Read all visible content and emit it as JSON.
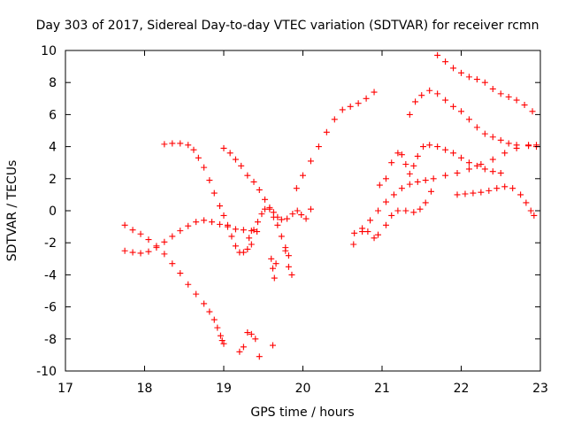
{
  "chart_data": {
    "type": "scatter",
    "title": "Day 303 of 2017, Sidereal Day-to-day VTEC variation (SDTVAR) for receiver rcmn",
    "xlabel": "GPS time / hours",
    "ylabel": "SDTVAR / TECUs",
    "xlim": [
      17,
      23
    ],
    "ylim": [
      -10,
      10
    ],
    "x_ticks": [
      "17",
      "18",
      "19",
      "20",
      "21",
      "22",
      "23"
    ],
    "y_ticks": [
      "-10",
      "-8",
      "-6",
      "-4",
      "-2",
      "0",
      "2",
      "4",
      "6",
      "8",
      "10"
    ],
    "marker": "+",
    "marker_color": "#ff0000",
    "grid": false,
    "legend": "none",
    "series": [
      {
        "points": [
          [
            17.75,
            -2.5
          ],
          [
            17.85,
            -2.6
          ],
          [
            17.95,
            -2.65
          ],
          [
            18.05,
            -2.55
          ],
          [
            18.15,
            -2.3
          ],
          [
            18.25,
            -1.95
          ],
          [
            18.35,
            -1.6
          ],
          [
            18.45,
            -1.25
          ],
          [
            18.55,
            -0.95
          ],
          [
            18.65,
            -0.7
          ],
          [
            18.75,
            -0.6
          ],
          [
            18.85,
            -0.7
          ],
          [
            18.95,
            -0.85
          ],
          [
            19.05,
            -1.0
          ],
          [
            19.15,
            -1.15
          ],
          [
            19.25,
            -1.2
          ],
          [
            19.35,
            -1.25
          ],
          [
            19.42,
            -1.3
          ]
        ]
      },
      {
        "points": [
          [
            17.75,
            -0.9
          ],
          [
            17.85,
            -1.2
          ],
          [
            17.95,
            -1.45
          ],
          [
            18.05,
            -1.8
          ],
          [
            18.15,
            -2.2
          ],
          [
            18.25,
            -2.7
          ],
          [
            18.35,
            -3.3
          ],
          [
            18.45,
            -3.9
          ],
          [
            18.55,
            -4.6
          ],
          [
            18.65,
            -5.2
          ],
          [
            18.75,
            -5.8
          ],
          [
            18.82,
            -6.3
          ],
          [
            18.88,
            -6.8
          ],
          [
            18.92,
            -7.3
          ],
          [
            18.96,
            -7.8
          ],
          [
            18.98,
            -8.1
          ],
          [
            19.0,
            -8.3
          ]
        ]
      },
      {
        "points": [
          [
            18.25,
            4.15
          ],
          [
            18.35,
            4.2
          ],
          [
            18.45,
            4.2
          ],
          [
            18.55,
            4.1
          ],
          [
            18.62,
            3.8
          ],
          [
            18.68,
            3.3
          ],
          [
            18.75,
            2.7
          ],
          [
            18.82,
            1.9
          ],
          [
            18.88,
            1.1
          ],
          [
            18.95,
            0.3
          ],
          [
            19.0,
            -0.3
          ],
          [
            19.05,
            -0.9
          ],
          [
            19.1,
            -1.6
          ],
          [
            19.15,
            -2.2
          ],
          [
            19.2,
            -2.6
          ],
          [
            19.25,
            -2.6
          ],
          [
            19.3,
            -2.4
          ],
          [
            19.35,
            -2.1
          ]
        ]
      },
      {
        "points": [
          [
            19.2,
            -8.8
          ],
          [
            19.25,
            -8.5
          ],
          [
            19.3,
            -7.6
          ],
          [
            19.35,
            -7.7
          ],
          [
            19.4,
            -8.0
          ],
          [
            19.45,
            -9.1
          ]
        ]
      },
      {
        "points": [
          [
            19.0,
            3.9
          ],
          [
            19.08,
            3.6
          ],
          [
            19.15,
            3.2
          ],
          [
            19.22,
            2.8
          ],
          [
            19.3,
            2.2
          ],
          [
            19.38,
            1.8
          ],
          [
            19.45,
            1.3
          ],
          [
            19.52,
            0.7
          ],
          [
            19.58,
            0.1
          ],
          [
            19.63,
            -0.4
          ],
          [
            19.68,
            -0.9
          ],
          [
            19.73,
            -1.6
          ],
          [
            19.78,
            -2.3
          ],
          [
            19.82,
            -2.8
          ]
        ]
      },
      {
        "points": [
          [
            19.6,
            -3.0
          ],
          [
            19.62,
            -3.6
          ],
          [
            19.64,
            -4.2
          ],
          [
            19.66,
            -3.3
          ],
          [
            19.78,
            -2.5
          ],
          [
            19.82,
            -3.5
          ],
          [
            19.86,
            -4.0
          ],
          [
            19.62,
            -8.4
          ]
        ]
      },
      {
        "points": [
          [
            19.32,
            -1.7
          ],
          [
            19.38,
            -1.2
          ],
          [
            19.43,
            -0.7
          ],
          [
            19.48,
            -0.2
          ],
          [
            19.52,
            0.1
          ],
          [
            19.58,
            0.2
          ],
          [
            19.63,
            -0.1
          ],
          [
            19.68,
            -0.4
          ],
          [
            19.73,
            -0.55
          ],
          [
            19.8,
            -0.5
          ],
          [
            19.87,
            -0.2
          ],
          [
            19.93,
            0.0
          ],
          [
            19.98,
            -0.25
          ],
          [
            20.04,
            -0.5
          ],
          [
            20.1,
            0.1
          ]
        ]
      },
      {
        "points": [
          [
            19.92,
            1.4
          ],
          [
            20.0,
            2.2
          ],
          [
            20.1,
            3.1
          ],
          [
            20.2,
            4.0
          ],
          [
            20.3,
            4.9
          ],
          [
            20.4,
            5.7
          ],
          [
            20.5,
            6.3
          ],
          [
            20.6,
            6.5
          ],
          [
            20.7,
            6.7
          ],
          [
            20.8,
            7.0
          ],
          [
            20.9,
            7.4
          ]
        ]
      },
      {
        "points": [
          [
            20.64,
            -2.1
          ],
          [
            20.75,
            -1.3
          ],
          [
            20.85,
            -0.6
          ],
          [
            20.95,
            0.0
          ],
          [
            21.05,
            0.55
          ],
          [
            21.15,
            1.0
          ],
          [
            21.25,
            1.4
          ],
          [
            21.35,
            1.65
          ],
          [
            21.45,
            1.8
          ],
          [
            21.55,
            1.9
          ],
          [
            21.65,
            2.0
          ],
          [
            21.8,
            2.2
          ],
          [
            21.95,
            2.35
          ],
          [
            22.1,
            2.6
          ],
          [
            22.25,
            2.9
          ],
          [
            22.4,
            3.2
          ],
          [
            22.55,
            3.6
          ],
          [
            22.7,
            3.9
          ],
          [
            22.85,
            4.1
          ],
          [
            22.95,
            4.1
          ]
        ]
      },
      {
        "points": [
          [
            20.65,
            -1.4
          ],
          [
            20.75,
            -1.1
          ],
          [
            20.82,
            -1.3
          ],
          [
            20.9,
            -1.7
          ],
          [
            20.95,
            -1.5
          ],
          [
            21.05,
            -0.9
          ],
          [
            21.12,
            -0.3
          ],
          [
            21.2,
            0.0
          ],
          [
            21.3,
            0.0
          ],
          [
            21.4,
            -0.1
          ],
          [
            21.48,
            0.1
          ],
          [
            21.55,
            0.5
          ],
          [
            21.62,
            1.2
          ]
        ]
      },
      {
        "points": [
          [
            20.97,
            1.6
          ],
          [
            21.05,
            2.0
          ],
          [
            21.12,
            3.0
          ],
          [
            21.2,
            3.6
          ],
          [
            21.25,
            3.5
          ],
          [
            21.3,
            2.9
          ],
          [
            21.35,
            2.3
          ],
          [
            21.4,
            2.8
          ],
          [
            21.45,
            3.4
          ],
          [
            21.52,
            4.0
          ],
          [
            21.6,
            4.1
          ],
          [
            21.7,
            4.0
          ],
          [
            21.8,
            3.8
          ],
          [
            21.9,
            3.6
          ],
          [
            22.0,
            3.3
          ],
          [
            22.1,
            3.0
          ],
          [
            22.2,
            2.8
          ],
          [
            22.3,
            2.6
          ],
          [
            22.4,
            2.45
          ],
          [
            22.5,
            2.35
          ]
        ]
      },
      {
        "points": [
          [
            21.35,
            6.0
          ],
          [
            21.42,
            6.8
          ],
          [
            21.5,
            7.2
          ],
          [
            21.6,
            7.5
          ],
          [
            21.7,
            7.3
          ],
          [
            21.8,
            6.9
          ],
          [
            21.9,
            6.5
          ],
          [
            22.0,
            6.2
          ],
          [
            22.1,
            5.7
          ],
          [
            22.2,
            5.2
          ],
          [
            22.3,
            4.8
          ],
          [
            22.4,
            4.6
          ],
          [
            22.5,
            4.4
          ],
          [
            22.6,
            4.2
          ],
          [
            22.7,
            4.1
          ],
          [
            22.85,
            4.05
          ],
          [
            22.95,
            4.0
          ]
        ]
      },
      {
        "points": [
          [
            21.7,
            9.7
          ],
          [
            21.8,
            9.3
          ],
          [
            21.9,
            8.9
          ],
          [
            22.0,
            8.6
          ],
          [
            22.1,
            8.35
          ],
          [
            22.2,
            8.2
          ],
          [
            22.3,
            8.0
          ],
          [
            22.4,
            7.6
          ],
          [
            22.5,
            7.3
          ],
          [
            22.6,
            7.1
          ],
          [
            22.7,
            6.9
          ],
          [
            22.8,
            6.6
          ],
          [
            22.9,
            6.2
          ]
        ]
      },
      {
        "points": [
          [
            21.95,
            1.0
          ],
          [
            22.05,
            1.05
          ],
          [
            22.15,
            1.1
          ],
          [
            22.25,
            1.15
          ],
          [
            22.35,
            1.25
          ],
          [
            22.45,
            1.4
          ],
          [
            22.55,
            1.5
          ],
          [
            22.65,
            1.4
          ],
          [
            22.75,
            1.0
          ],
          [
            22.82,
            0.5
          ],
          [
            22.88,
            0.0
          ],
          [
            22.92,
            -0.3
          ]
        ]
      }
    ]
  }
}
